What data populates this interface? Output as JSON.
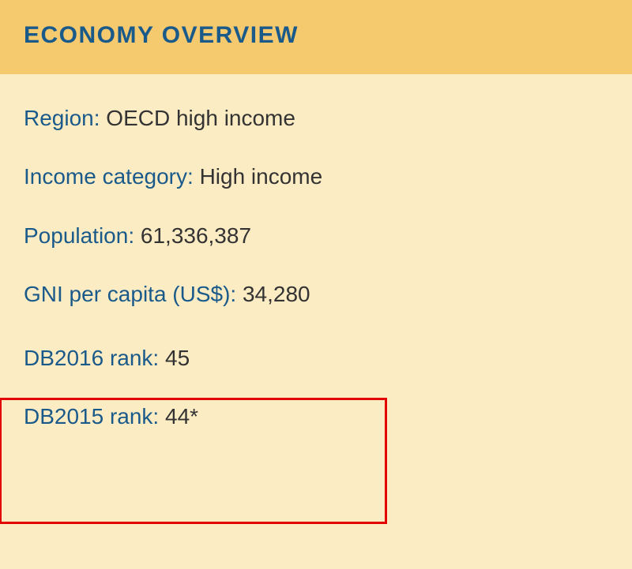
{
  "header": {
    "title": "ECONOMY OVERVIEW"
  },
  "rows": [
    {
      "label": "Region: ",
      "value": "OECD high income"
    },
    {
      "label": "Income category: ",
      "value": "High income"
    },
    {
      "label": "Population: ",
      "value": "61,336,387"
    },
    {
      "label": "GNI per capita (US$): ",
      "value": "34,280"
    }
  ],
  "ranks": [
    {
      "label": "DB2016 rank: ",
      "value": "45"
    },
    {
      "label": "DB2015 rank: ",
      "value": "44*"
    }
  ],
  "colors": {
    "header_bg": "#f5c96e",
    "body_bg": "#fcecc4",
    "label_color": "#1a5a8a",
    "value_color": "#333333",
    "highlight_border": "#e20000"
  }
}
